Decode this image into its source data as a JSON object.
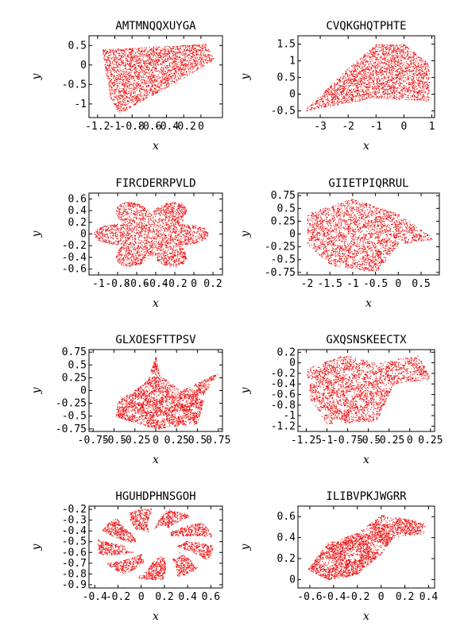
{
  "colors": {
    "points": "#ee1111"
  },
  "chart_data": [
    {
      "type": "scatter",
      "title": "AMTMNQQXUYGA",
      "xlabel": "x",
      "ylabel": "y",
      "xlim": [
        -1.3,
        0.25
      ],
      "ylim": [
        -1.35,
        0.75
      ],
      "xticks": [
        -1.2,
        -1,
        -0.8,
        -0.6,
        -0.4,
        -0.2,
        0
      ],
      "xtick_labels": [
        "-1.2",
        "-1",
        "-0.8",
        "-0.6",
        "-0.4",
        "-0.2",
        "0"
      ],
      "yticks": [
        0.5,
        0,
        -0.5,
        -1
      ],
      "ytick_labels": [
        "0.5",
        "0",
        "-0.5",
        "-1"
      ],
      "shape": "parallelogram",
      "shape_points": [
        [
          -1.15,
          0.4
        ],
        [
          0.05,
          0.55
        ],
        [
          0.15,
          0.15
        ],
        [
          -0.1,
          -0.2
        ],
        [
          -0.95,
          -1.25
        ],
        [
          -1.05,
          -0.9
        ]
      ]
    },
    {
      "type": "scatter",
      "title": "CVQKGHQTPHTE",
      "xlabel": "x",
      "ylabel": "y",
      "xlim": [
        -3.8,
        1.1
      ],
      "ylim": [
        -0.7,
        1.75
      ],
      "xticks": [
        -3,
        -2,
        -1,
        0,
        1
      ],
      "xtick_labels": [
        "-3",
        "-2",
        "-1",
        "0",
        "1"
      ],
      "yticks": [
        1.5,
        1,
        0.5,
        0,
        -0.5
      ],
      "ytick_labels": [
        "1.5",
        "1",
        "0.5",
        "0",
        "-0.5"
      ],
      "shape": "wedge",
      "shape_points": [
        [
          -3.6,
          -0.5
        ],
        [
          -2.0,
          0.8
        ],
        [
          -1.0,
          1.5
        ],
        [
          0.0,
          1.5
        ],
        [
          0.9,
          0.9
        ],
        [
          0.9,
          -0.2
        ],
        [
          -1.0,
          -0.1
        ],
        [
          -3.0,
          -0.4
        ]
      ]
    },
    {
      "type": "scatter",
      "title": "FIRCDERRPVLD",
      "xlabel": "x",
      "ylabel": "y",
      "xlim": [
        -1.1,
        0.3
      ],
      "ylim": [
        -0.7,
        0.7
      ],
      "xticks": [
        -1,
        -0.8,
        -0.6,
        -0.4,
        -0.2,
        0,
        0.2
      ],
      "xtick_labels": [
        "-1",
        "-0.8",
        "-0.6",
        "-0.4",
        "-0.2",
        "0",
        "0.2"
      ],
      "yticks": [
        0.6,
        0.4,
        0.2,
        0,
        -0.2,
        -0.4,
        -0.6
      ],
      "ytick_labels": [
        "0.6",
        "0.4",
        "0.2",
        "0",
        "-0.2",
        "-0.4",
        "-0.6"
      ],
      "shape": "flower",
      "shape_points": [
        [
          -0.45,
          0.0
        ]
      ]
    },
    {
      "type": "scatter",
      "title": "GIIETPIQRRUL",
      "xlabel": "x",
      "ylabel": "y",
      "xlim": [
        -2.2,
        0.9
      ],
      "ylim": [
        -0.8,
        0.8
      ],
      "xticks": [
        -2,
        -1.5,
        -1,
        -0.5,
        0,
        0.5
      ],
      "xtick_labels": [
        "-2",
        "-1.5",
        "-1",
        "-0.5",
        "0",
        "0.5"
      ],
      "yticks": [
        0.75,
        0.5,
        0.25,
        0,
        -0.25,
        -0.5,
        -0.75
      ],
      "ytick_labels": [
        "0.75",
        "0.5",
        "0.25",
        "0",
        "-0.25",
        "-0.5",
        "-0.75"
      ],
      "shape": "kidney",
      "shape_points": [
        [
          -2.0,
          0.4
        ],
        [
          -1.0,
          0.7
        ],
        [
          0.0,
          0.4
        ],
        [
          0.8,
          -0.1
        ],
        [
          0.0,
          -0.2
        ],
        [
          -0.5,
          -0.75
        ],
        [
          -1.5,
          -0.6
        ],
        [
          -2.0,
          -0.2
        ]
      ]
    },
    {
      "type": "scatter",
      "title": "GLXOESFTTPSV",
      "xlabel": "x",
      "ylabel": "y",
      "xlim": [
        -0.8,
        0.8
      ],
      "ylim": [
        -0.8,
        0.8
      ],
      "xticks": [
        -0.75,
        -0.5,
        -0.25,
        0,
        0.25,
        0.5,
        0.75
      ],
      "xtick_labels": [
        "-0.75",
        "-0.5",
        "-0.25",
        "0",
        "0.25",
        "0.5",
        "0.75"
      ],
      "yticks": [
        0.75,
        0.5,
        0.25,
        0,
        -0.25,
        -0.5,
        -0.75
      ],
      "ytick_labels": [
        "0.75",
        "0.5",
        "0.25",
        "0",
        "-0.25",
        "-0.5",
        "-0.75"
      ],
      "shape": "saddle",
      "shape_points": [
        [
          -0.45,
          -0.2
        ],
        [
          -0.1,
          0.2
        ],
        [
          0.0,
          0.7
        ],
        [
          0.05,
          0.3
        ],
        [
          0.3,
          0.0
        ],
        [
          0.75,
          0.35
        ],
        [
          0.6,
          0.0
        ],
        [
          0.5,
          -0.65
        ],
        [
          0.0,
          -0.75
        ],
        [
          -0.5,
          -0.5
        ]
      ]
    },
    {
      "type": "scatter",
      "title": "GXQSNSKEECTX",
      "xlabel": "x",
      "ylabel": "y",
      "xlim": [
        -1.35,
        0.3
      ],
      "ylim": [
        -1.3,
        0.25
      ],
      "xticks": [
        -1.25,
        -1,
        -0.75,
        -0.5,
        -0.25,
        0,
        0.25
      ],
      "xtick_labels": [
        "-1.25",
        "-1",
        "-0.75",
        "-0.5",
        "-0.25",
        "0",
        "0.25"
      ],
      "yticks": [
        0.2,
        0,
        -0.2,
        -0.4,
        -0.6,
        -0.8,
        -1,
        -1.2
      ],
      "ytick_labels": [
        "0.2",
        "0",
        "-0.2",
        "-0.4",
        "-0.6",
        "-0.8",
        "-1",
        "-1.2"
      ],
      "shape": "loop",
      "shape_points": [
        [
          -1.25,
          -0.1
        ],
        [
          -0.8,
          0.15
        ],
        [
          -0.4,
          0.0
        ],
        [
          0.1,
          0.15
        ],
        [
          0.25,
          -0.3
        ],
        [
          -0.2,
          -0.4
        ],
        [
          -0.4,
          -1.1
        ],
        [
          -1.0,
          -1.15
        ],
        [
          -1.2,
          -0.7
        ]
      ]
    },
    {
      "type": "scatter",
      "title": "HGUHDPHNSGOH",
      "xlabel": "x",
      "ylabel": "y",
      "xlim": [
        -0.45,
        0.7
      ],
      "ylim": [
        -0.93,
        -0.17
      ],
      "xticks": [
        -0.4,
        -0.2,
        0,
        0.2,
        0.4,
        0.6
      ],
      "xtick_labels": [
        "-0.4",
        "-0.2",
        "0",
        "0.2",
        "0.4",
        "0.6"
      ],
      "yticks": [
        -0.2,
        -0.3,
        -0.4,
        -0.5,
        -0.6,
        -0.7,
        -0.8,
        -0.9
      ],
      "ytick_labels": [
        "-0.2",
        "-0.3",
        "-0.4",
        "-0.5",
        "-0.6",
        "-0.7",
        "-0.8",
        "-0.9"
      ],
      "shape": "ring",
      "shape_points": [
        [
          0.12,
          -0.52
        ]
      ]
    },
    {
      "type": "scatter",
      "title": "ILIBVPKJWGRR",
      "xlabel": "x",
      "ylabel": "y",
      "xlim": [
        -0.7,
        0.45
      ],
      "ylim": [
        -0.08,
        0.7
      ],
      "xticks": [
        -0.6,
        -0.4,
        -0.2,
        0,
        0.2,
        0.4
      ],
      "xtick_labels": [
        "-0.6",
        "-0.4",
        "-0.2",
        "0",
        "0.2",
        "0.4"
      ],
      "yticks": [
        0.6,
        0.4,
        0.2,
        0
      ],
      "ytick_labels": [
        "0.6",
        "0.4",
        "0.2",
        "0"
      ],
      "shape": "blob",
      "shape_points": [
        [
          -0.62,
          0.1
        ],
        [
          -0.45,
          0.35
        ],
        [
          -0.2,
          0.45
        ],
        [
          0.0,
          0.62
        ],
        [
          0.35,
          0.55
        ],
        [
          0.4,
          0.45
        ],
        [
          0.1,
          0.4
        ],
        [
          0.0,
          0.25
        ],
        [
          -0.2,
          0.05
        ],
        [
          -0.45,
          0.0
        ]
      ]
    }
  ]
}
